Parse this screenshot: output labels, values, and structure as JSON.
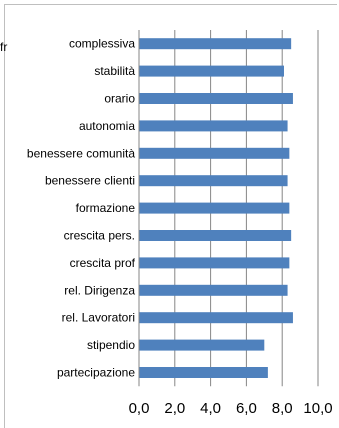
{
  "fragment_text": "fr",
  "chart_data": {
    "type": "bar",
    "orientation": "horizontal",
    "categories": [
      "complessiva",
      "stabilità",
      "orario",
      "autonomia",
      "benessere comunità",
      "benessere clienti",
      "formazione",
      "crescita pers.",
      "crescita prof",
      "rel. Dirigenza",
      "rel. Lavoratori",
      "stipendio",
      "partecipazione"
    ],
    "values": [
      8.5,
      8.1,
      8.6,
      8.3,
      8.4,
      8.3,
      8.4,
      8.5,
      8.4,
      8.3,
      8.6,
      7.0,
      7.2
    ],
    "xlim": [
      0,
      10
    ],
    "xticks": [
      "0,0",
      "2,0",
      "4,0",
      "6,0",
      "8,0",
      "10,0"
    ],
    "grid": "vertical",
    "bar_color": "#4f81bd",
    "title": "",
    "xlabel": "",
    "ylabel": ""
  }
}
